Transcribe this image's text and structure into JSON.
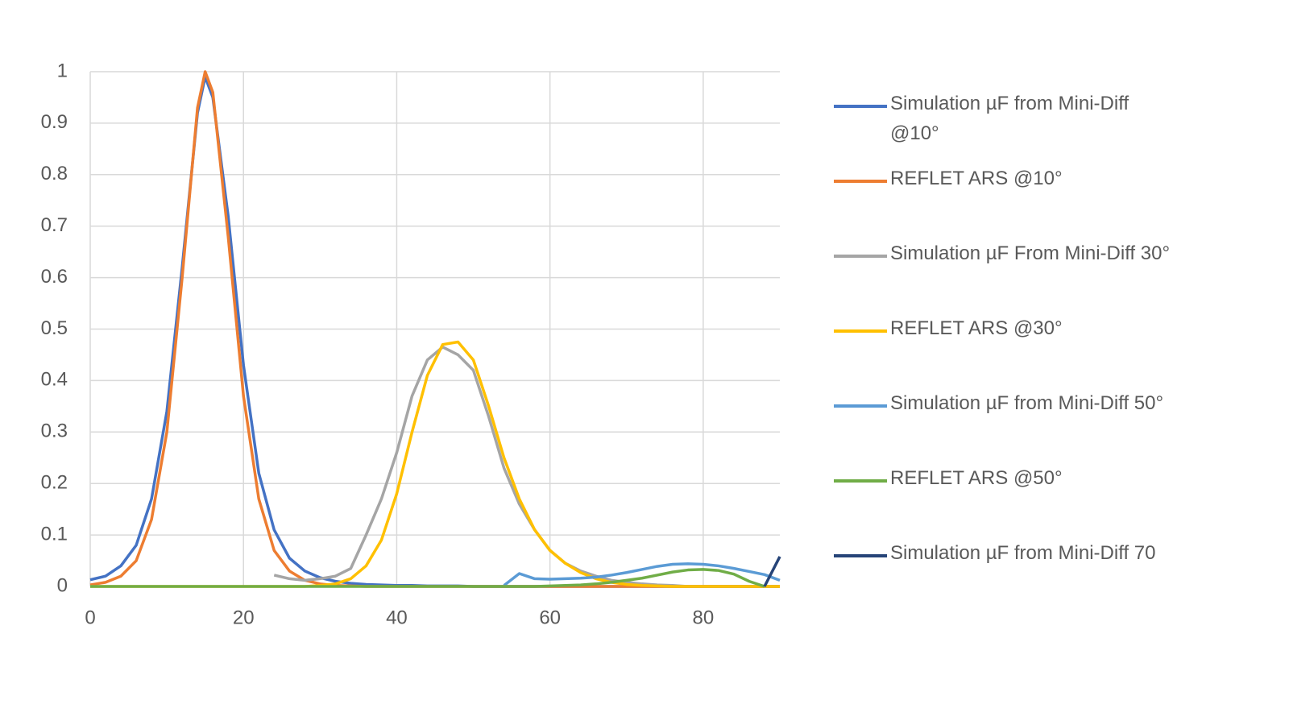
{
  "chart_data": {
    "type": "line",
    "x": [
      0,
      2,
      4,
      6,
      8,
      10,
      12,
      14,
      15,
      16,
      18,
      20,
      22,
      24,
      26,
      28,
      30,
      32,
      34,
      36,
      38,
      40,
      42,
      44,
      46,
      48,
      50,
      52,
      54,
      56,
      58,
      60,
      62,
      64,
      66,
      68,
      70,
      72,
      74,
      76,
      78,
      80,
      82,
      84,
      86,
      88,
      90
    ],
    "xlim": [
      0,
      90
    ],
    "xticks": [
      0,
      20,
      40,
      60,
      80
    ],
    "ylim": [
      0,
      1
    ],
    "yticks": [
      0,
      0.1,
      0.2,
      0.3,
      0.4,
      0.5,
      0.6,
      0.7,
      0.8,
      0.9,
      1
    ],
    "grid": true,
    "legend": "right",
    "series": [
      {
        "name": "Simulation µF from Mini-Diff @10°",
        "color": "#4472c4",
        "values": [
          0.013,
          0.02,
          0.04,
          0.08,
          0.17,
          0.34,
          0.62,
          0.92,
          0.99,
          0.95,
          0.72,
          0.43,
          0.22,
          0.11,
          0.055,
          0.03,
          0.017,
          0.01,
          0.006,
          0.004,
          0.003,
          0.002,
          0.002,
          0.001,
          0.001,
          0.001,
          0,
          0,
          0,
          0,
          0,
          0,
          0,
          0,
          0,
          0,
          0,
          0,
          0,
          0,
          0,
          0,
          0,
          0,
          0,
          0,
          0
        ]
      },
      {
        "name": "REFLET ARS @10°",
        "color": "#ed7d31",
        "values": [
          0.003,
          0.008,
          0.02,
          0.05,
          0.13,
          0.3,
          0.6,
          0.93,
          1,
          0.96,
          0.68,
          0.37,
          0.17,
          0.07,
          0.03,
          0.012,
          0.005,
          0.002,
          0.001,
          0,
          0,
          0,
          0,
          0,
          0,
          0,
          0,
          0,
          0,
          0,
          0,
          0,
          0,
          0,
          0,
          0,
          0,
          0,
          0,
          0,
          0,
          0,
          0,
          0,
          0,
          0,
          0
        ]
      },
      {
        "name": "Simulation µF From Mini-Diff 30°",
        "color": "#a5a5a5",
        "values": [
          null,
          null,
          null,
          null,
          null,
          null,
          null,
          null,
          null,
          null,
          null,
          null,
          null,
          0.022,
          0.015,
          0.012,
          0.015,
          0.02,
          0.035,
          0.1,
          0.17,
          0.26,
          0.37,
          0.44,
          0.465,
          0.45,
          0.42,
          0.33,
          0.23,
          0.16,
          0.11,
          0.07,
          0.045,
          0.03,
          0.02,
          0.012,
          0.008,
          0.005,
          0.003,
          0.002,
          0,
          0,
          0,
          0,
          0,
          0,
          0
        ]
      },
      {
        "name": "REFLET ARS @30°",
        "color": "#ffc000",
        "values": [
          0,
          0,
          0,
          0,
          0,
          0,
          0,
          0,
          0,
          0,
          0,
          0,
          0,
          0,
          0,
          0,
          0.002,
          0.005,
          0.015,
          0.04,
          0.09,
          0.18,
          0.3,
          0.41,
          0.47,
          0.475,
          0.44,
          0.35,
          0.25,
          0.17,
          0.11,
          0.07,
          0.045,
          0.027,
          0.015,
          0.008,
          0.004,
          0.002,
          0.001,
          0,
          0,
          0,
          0,
          0,
          0,
          0,
          0
        ]
      },
      {
        "name": "Simulation µF from Mini-Diff 50°",
        "color": "#5b9bd5",
        "values": [
          null,
          null,
          null,
          null,
          null,
          null,
          null,
          null,
          null,
          null,
          null,
          null,
          null,
          null,
          null,
          null,
          null,
          null,
          null,
          null,
          null,
          null,
          null,
          null,
          null,
          null,
          null,
          null,
          0.002,
          0.025,
          0.015,
          0.014,
          0.015,
          0.016,
          0.018,
          0.022,
          0.027,
          0.033,
          0.039,
          0.043,
          0.044,
          0.043,
          0.04,
          0.035,
          0.029,
          0.023,
          0.012
        ]
      },
      {
        "name": "REFLET ARS @50°",
        "color": "#70ad47",
        "values": [
          0,
          0,
          0,
          0,
          0,
          0,
          0,
          0,
          0,
          0,
          0,
          0,
          0,
          0,
          0,
          0,
          0,
          0,
          0,
          0,
          0,
          0,
          0,
          0,
          0,
          0,
          0,
          0,
          0,
          0,
          0,
          0.001,
          0.002,
          0.003,
          0.005,
          0.008,
          0.012,
          0.016,
          0.022,
          0.028,
          0.032,
          0.033,
          0.031,
          0.024,
          0.01,
          0,
          null
        ]
      },
      {
        "name": "Simulation µF from Mini-Diff 70",
        "color": "#264478",
        "values": [
          null,
          null,
          null,
          null,
          null,
          null,
          null,
          null,
          null,
          null,
          null,
          null,
          null,
          null,
          null,
          null,
          null,
          null,
          null,
          null,
          null,
          null,
          null,
          null,
          null,
          null,
          null,
          null,
          null,
          null,
          null,
          null,
          null,
          null,
          null,
          null,
          null,
          null,
          null,
          null,
          null,
          null,
          null,
          null,
          null,
          0,
          0.058
        ]
      }
    ]
  }
}
